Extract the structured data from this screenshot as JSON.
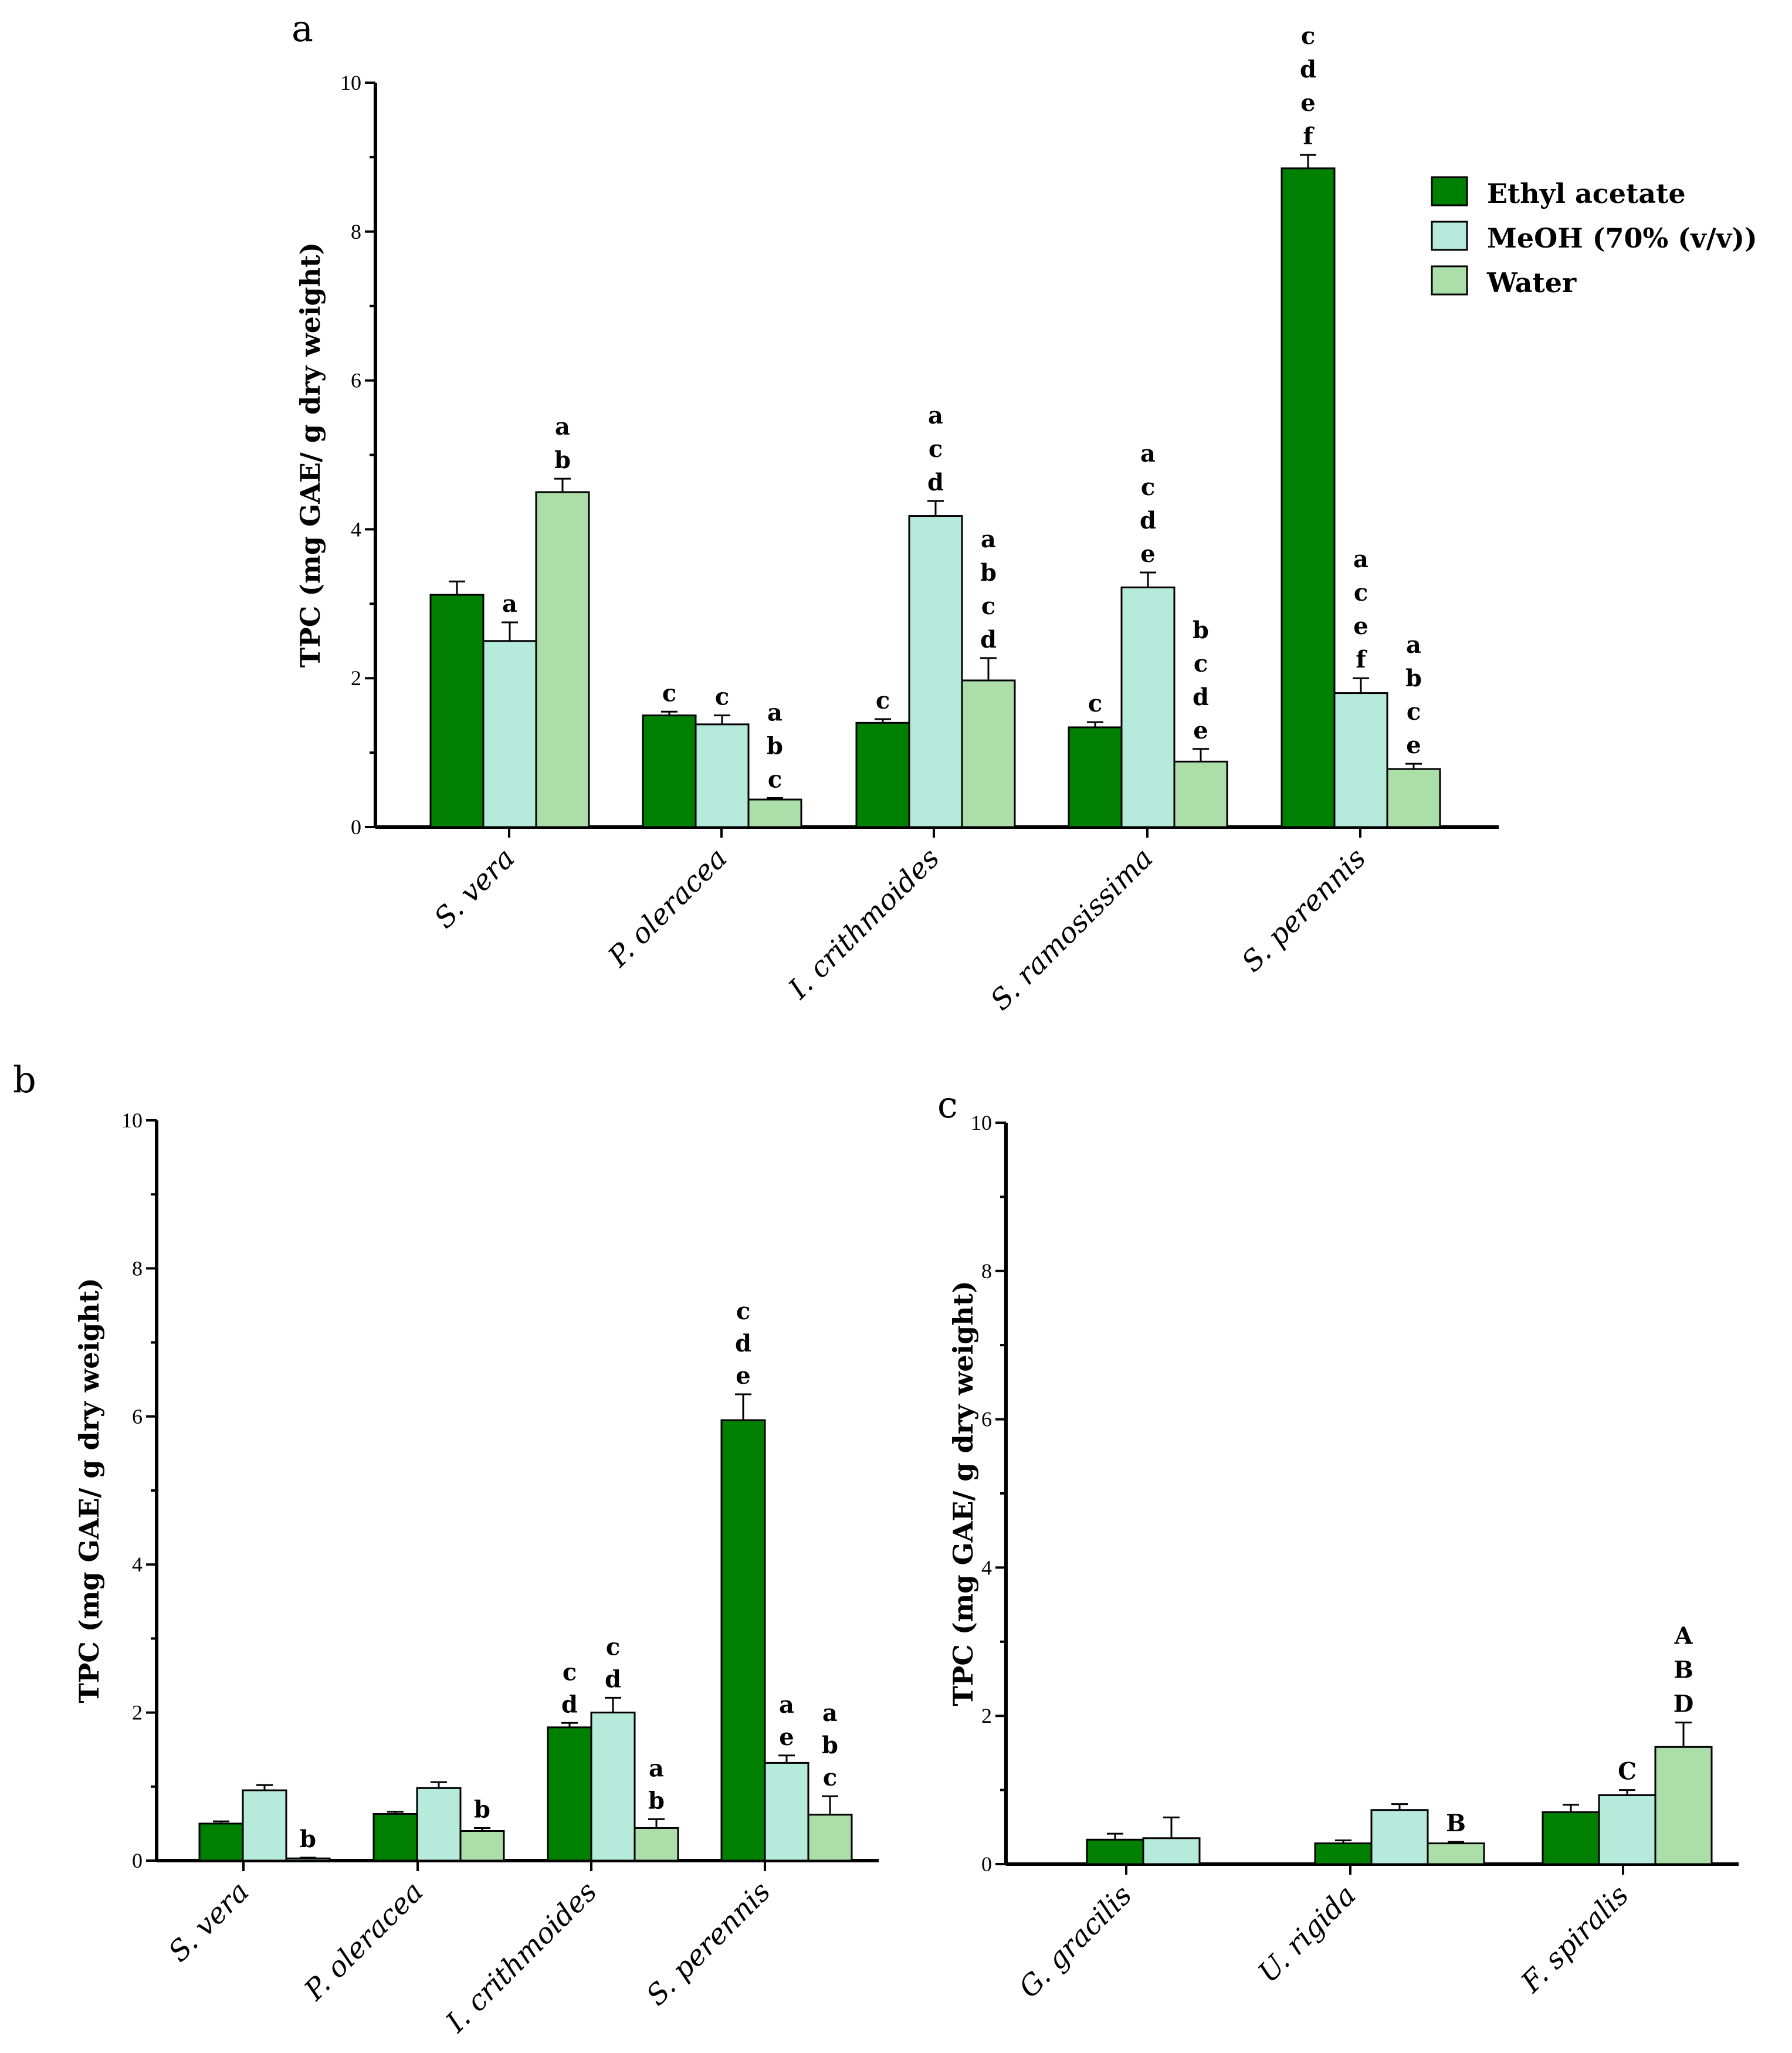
{
  "colors": {
    "Ethyl acetate": "#008000",
    "MeOH (70% (v/v))": "#b6eadb",
    "Water": "#acdeaa"
  },
  "chart_data": [
    {
      "panel": "a",
      "type": "bar",
      "ylabel": "TPC (mg GAE/ g dry weight)",
      "ylim": [
        0,
        10
      ],
      "yticks": [
        "0",
        "2",
        "4",
        "6",
        "8",
        "10"
      ],
      "categories": [
        "S. vera",
        "P. oleracea",
        "I. crithmoides",
        "S. ramosissima",
        "S. perennis"
      ],
      "legend": {
        "position": "top-right"
      },
      "series": [
        {
          "name": "Ethyl acetate",
          "values": [
            3.12,
            1.5,
            1.4,
            1.34,
            8.85
          ],
          "errors": [
            0.18,
            0.05,
            0.05,
            0.07,
            0.18
          ],
          "letters": [
            "",
            "c",
            "c",
            "c",
            "c d e f"
          ]
        },
        {
          "name": "MeOH (70% (v/v))",
          "values": [
            2.5,
            1.38,
            4.18,
            3.22,
            1.8
          ],
          "errors": [
            0.25,
            0.12,
            0.2,
            0.2,
            0.2
          ],
          "letters": [
            "a",
            "c",
            "a c d",
            "a c d e",
            "a c e f"
          ]
        },
        {
          "name": "Water",
          "values": [
            4.5,
            0.37,
            1.97,
            0.88,
            0.78
          ],
          "errors": [
            0.18,
            0.02,
            0.3,
            0.17,
            0.07
          ],
          "letters": [
            "a b",
            "a b c",
            "a b c d",
            "b c d e",
            "a b c e"
          ]
        }
      ]
    },
    {
      "panel": "b",
      "type": "bar",
      "ylabel": "TPC (mg GAE/ g dry weight)",
      "ylim": [
        0,
        10
      ],
      "yticks": [
        "0",
        "2",
        "4",
        "6",
        "8",
        "10"
      ],
      "categories": [
        "S. vera",
        "P. oleracea",
        "I. crithmoides",
        "S. perennis"
      ],
      "series": [
        {
          "name": "Ethyl acetate",
          "values": [
            0.5,
            0.63,
            1.8,
            5.95
          ],
          "errors": [
            0.03,
            0.03,
            0.06,
            0.35
          ],
          "letters": [
            "",
            "",
            "c d",
            "c d e"
          ]
        },
        {
          "name": "MeOH (70% (v/v))",
          "values": [
            0.95,
            0.98,
            2.0,
            1.32
          ],
          "errors": [
            0.07,
            0.08,
            0.2,
            0.1
          ],
          "letters": [
            "",
            "",
            "c d",
            "a e"
          ]
        },
        {
          "name": "Water",
          "values": [
            0.03,
            0.4,
            0.44,
            0.62
          ],
          "errors": [
            0.01,
            0.04,
            0.12,
            0.25
          ],
          "letters": [
            "b",
            "b",
            "a b",
            "a b c"
          ]
        }
      ]
    },
    {
      "panel": "c",
      "type": "bar",
      "ylabel": "TPC (mg GAE/ g dry weight)",
      "ylim": [
        0,
        10
      ],
      "yticks": [
        "0",
        "2",
        "4",
        "6",
        "8",
        "10"
      ],
      "categories": [
        "G. gracilis",
        "U. rigida",
        "F. spiralis"
      ],
      "series": [
        {
          "name": "Ethyl acetate",
          "values": [
            0.33,
            0.28,
            0.7
          ],
          "errors": [
            0.08,
            0.04,
            0.1
          ],
          "letters": [
            "",
            "",
            ""
          ]
        },
        {
          "name": "MeOH (70% (v/v))",
          "values": [
            0.35,
            0.73,
            0.93
          ],
          "errors": [
            0.28,
            0.08,
            0.07
          ],
          "letters": [
            "",
            "",
            "C"
          ]
        },
        {
          "name": "Water",
          "values": [
            null,
            0.28,
            1.58
          ],
          "errors": [
            null,
            0.02,
            0.33
          ],
          "letters": [
            "",
            "B",
            "A B D"
          ]
        }
      ]
    }
  ]
}
